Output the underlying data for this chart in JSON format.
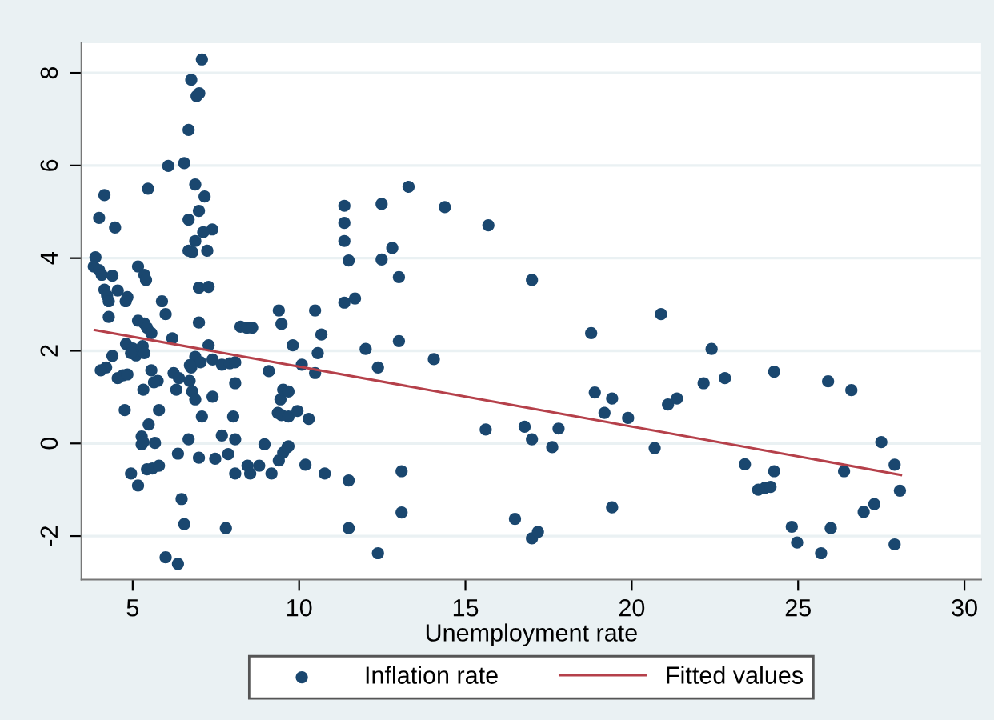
{
  "chart_data": {
    "type": "scatter",
    "xlabel": "Unemployment rate",
    "xlim": [
      3.46,
      30.5
    ],
    "ylim": [
      -2.94,
      8.64
    ],
    "xticks": [
      5,
      10,
      15,
      20,
      25,
      30
    ],
    "yticks": [
      -2,
      0,
      2,
      4,
      6,
      8
    ],
    "grid": "y",
    "legend": "bottom",
    "series": [
      {
        "name": "Inflation rate",
        "marker": "circle",
        "color": "#1a476f",
        "x": [
          7.08,
          6.76,
          6.92,
          7.0,
          6.68,
          6.07,
          6.55,
          4.15,
          5.46,
          6.88,
          7.16,
          3.99,
          6.99,
          6.68,
          4.47,
          7.39,
          7.12,
          6.88,
          6.68,
          6.79,
          7.24,
          3.88,
          3.83,
          3.99,
          4.07,
          4.39,
          5.16,
          5.35,
          5.4,
          4.15,
          4.23,
          4.28,
          4.55,
          4.84,
          4.79,
          6.99,
          7.28,
          5.88,
          5.99,
          4.28,
          5.16,
          5.35,
          5.43,
          5.56,
          6.19,
          6.99,
          8.24,
          8.43,
          8.59,
          9.39,
          9.47,
          10.48,
          10.67,
          7.28,
          9.81,
          10.56,
          12.0,
          4.8,
          5.0,
          5.3,
          5.1,
          4.95,
          5.35,
          4.39,
          4.2,
          4.04,
          4.55,
          4.71,
          4.84,
          5.56,
          5.75,
          5.64,
          5.32,
          4.76,
          5.79,
          5.48,
          5.27,
          5.27,
          5.32,
          5.67,
          4.95,
          5.16,
          5.43,
          5.59,
          5.79,
          6.36,
          6.68,
          6.99,
          6.47,
          6.55,
          5.99,
          6.36,
          7.8,
          6.23,
          6.39,
          6.71,
          6.79,
          6.88,
          6.76,
          6.88,
          7.04,
          6.72,
          6.31,
          7.08,
          7.4,
          7.4,
          7.68,
          7.92,
          8.08,
          8.08,
          9.09,
          8.02,
          7.68,
          8.08,
          7.48,
          7.87,
          8.08,
          8.45,
          8.53,
          8.8,
          8.96,
          9.17,
          9.39,
          9.52,
          9.65,
          9.68,
          9.44,
          9.52,
          9.68,
          9.36,
          9.47,
          9.68,
          9.95,
          10.29,
          10.08,
          10.48,
          10.19,
          10.77,
          11.49,
          11.49,
          11.36,
          11.36,
          11.36,
          11.49,
          11.36,
          11.68,
          12.48,
          13.29,
          14.38,
          15.69,
          12.8,
          12.48,
          13.0,
          13.0,
          12.37,
          14.05,
          17.0,
          18.78,
          18.89,
          19.41,
          19.18,
          19.89,
          15.61,
          16.78,
          17.0,
          17.8,
          17.61,
          13.08,
          13.08,
          12.37,
          16.49,
          17.0,
          17.18,
          19.41,
          20.88,
          20.69,
          21.09,
          21.36,
          22.16,
          22.4,
          22.8,
          24.28,
          25.9,
          26.6,
          23.4,
          24.28,
          23.8,
          24.0,
          24.17,
          24.81,
          24.97,
          25.69,
          25.98,
          26.38,
          26.97,
          27.29,
          27.5,
          27.9,
          28.06,
          27.9
        ],
        "values": [
          8.29,
          7.85,
          7.5,
          7.56,
          6.77,
          5.99,
          6.05,
          5.36,
          5.5,
          5.59,
          5.33,
          4.87,
          5.02,
          4.83,
          4.66,
          4.62,
          4.56,
          4.37,
          4.16,
          4.13,
          4.16,
          4.02,
          3.82,
          3.74,
          3.64,
          3.62,
          3.82,
          3.64,
          3.53,
          3.32,
          3.19,
          3.07,
          3.3,
          3.16,
          3.07,
          3.36,
          3.38,
          3.07,
          2.79,
          2.73,
          2.65,
          2.59,
          2.5,
          2.38,
          2.27,
          2.61,
          2.52,
          2.5,
          2.5,
          2.87,
          2.58,
          2.87,
          2.35,
          2.12,
          2.12,
          1.95,
          2.04,
          2.15,
          2.05,
          2.1,
          1.9,
          1.95,
          1.95,
          1.89,
          1.64,
          1.58,
          1.41,
          1.47,
          1.49,
          1.58,
          1.35,
          1.32,
          1.16,
          0.72,
          0.72,
          0.41,
          0.15,
          -0.02,
          0.03,
          0.01,
          -0.65,
          -0.91,
          -0.56,
          -0.54,
          -0.48,
          -0.22,
          0.09,
          -0.31,
          -1.2,
          -1.74,
          -2.46,
          -2.6,
          -1.83,
          1.52,
          1.41,
          1.35,
          1.12,
          0.95,
          1.64,
          1.87,
          1.75,
          1.69,
          1.16,
          0.58,
          1.01,
          1.81,
          1.7,
          1.73,
          1.75,
          1.3,
          1.56,
          0.58,
          0.17,
          0.09,
          -0.33,
          -0.23,
          -0.65,
          -0.48,
          -0.65,
          -0.48,
          -0.02,
          -0.65,
          -0.37,
          -0.2,
          -0.08,
          -0.06,
          0.95,
          1.16,
          1.12,
          0.66,
          0.61,
          0.58,
          0.7,
          0.53,
          1.7,
          1.52,
          -0.46,
          -0.65,
          -0.8,
          -1.83,
          5.13,
          4.76,
          4.37,
          3.95,
          3.04,
          3.13,
          5.17,
          5.54,
          5.1,
          4.71,
          4.22,
          3.97,
          3.59,
          2.21,
          1.64,
          1.82,
          3.53,
          2.38,
          1.1,
          0.97,
          0.66,
          0.55,
          0.3,
          0.36,
          0.09,
          0.32,
          -0.08,
          -0.6,
          -1.49,
          -2.37,
          -1.63,
          -2.05,
          -1.91,
          -1.38,
          2.79,
          -0.1,
          0.84,
          0.97,
          1.3,
          2.04,
          1.41,
          1.55,
          1.34,
          1.15,
          -0.45,
          -0.6,
          -1.0,
          -0.96,
          -0.94,
          -1.8,
          -2.14,
          -2.37,
          -1.83,
          -0.6,
          -1.48,
          -1.31,
          0.03,
          -0.46,
          -1.02,
          -2.18
        ]
      },
      {
        "name": "Fitted values",
        "type": "line",
        "color": "#b5404a",
        "x": [
          3.86,
          28.09
        ],
        "values": [
          2.45,
          -0.68
        ]
      }
    ]
  }
}
